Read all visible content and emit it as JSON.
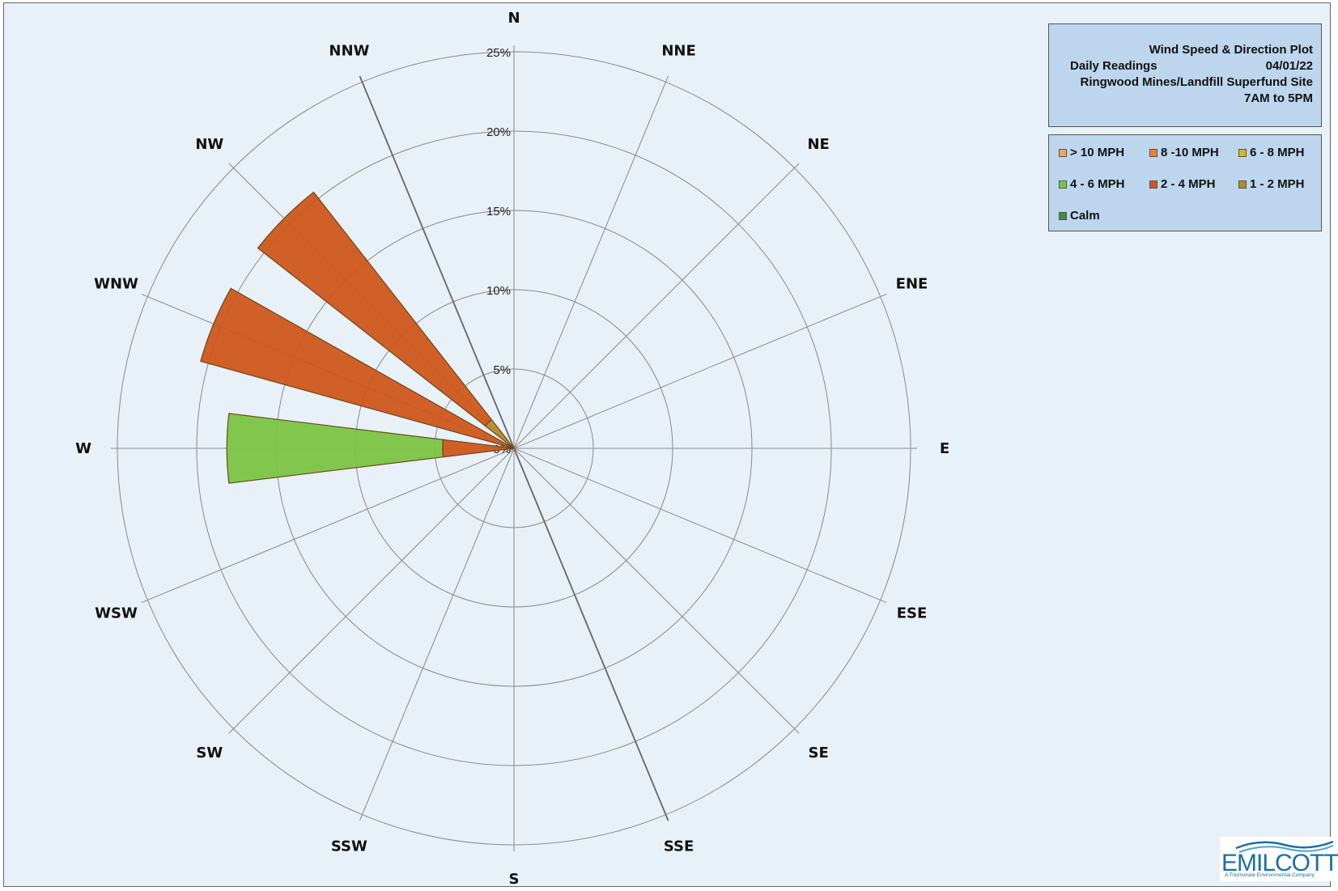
{
  "title_box": {
    "title": "Wind Speed & Direction Plot",
    "subtitle_left": "Daily Readings",
    "date": "04/01/22",
    "site": "Ringwood Mines/Landfill Superfund Site",
    "time_range": "7AM to 5PM"
  },
  "legend": [
    {
      "label": "> 10 MPH",
      "color": "#f5a25c"
    },
    {
      "label": "8 -10 MPH",
      "color": "#f07f2a"
    },
    {
      "label": "6 - 8 MPH",
      "color": "#d8b81e"
    },
    {
      "label": "4 - 6 MPH",
      "color": "#7cc443"
    },
    {
      "label": "2 - 4 MPH",
      "color": "#d0561c"
    },
    {
      "label": "1 - 2 MPH",
      "color": "#b8892a"
    },
    {
      "label": "Calm",
      "color": "#3f8f3a"
    }
  ],
  "logo": {
    "name": "EMILCOTT",
    "tagline": "A Triumvirate Environmental Company"
  },
  "chart_data": {
    "type": "wind_rose",
    "directions": [
      "N",
      "NNE",
      "NE",
      "ENE",
      "E",
      "ESE",
      "SE",
      "SSE",
      "S",
      "SSW",
      "SW",
      "WSW",
      "W",
      "WNW",
      "NW",
      "NNW"
    ],
    "ring_labels": [
      "0%",
      "5%",
      "10%",
      "15%",
      "20%",
      "25%"
    ],
    "rlim": [
      0,
      25
    ],
    "grid": true,
    "legend_position": "top-right",
    "series": [
      {
        "name": "> 10 MPH",
        "values": [
          0,
          0,
          0,
          0,
          0,
          0,
          0,
          0,
          0,
          0,
          0,
          0,
          0,
          0,
          0,
          0
        ]
      },
      {
        "name": "8 -10 MPH",
        "values": [
          0,
          0,
          0,
          0,
          0,
          0,
          0,
          0,
          0,
          0,
          0,
          0,
          0,
          0,
          0,
          0
        ]
      },
      {
        "name": "6 - 8 MPH",
        "values": [
          0,
          0,
          0,
          0,
          0,
          0,
          0,
          0,
          0,
          0,
          0,
          0,
          0,
          0,
          0,
          0
        ]
      },
      {
        "name": "4 - 6 MPH",
        "values": [
          0,
          0,
          0,
          0,
          0,
          0,
          0,
          0,
          0,
          0,
          0,
          0,
          13.6,
          0,
          0,
          0
        ]
      },
      {
        "name": "2 - 4 MPH",
        "values": [
          0,
          0,
          0,
          0,
          0,
          0,
          0,
          0,
          0,
          0,
          0,
          0,
          4.5,
          20.5,
          18.2,
          0
        ]
      },
      {
        "name": "1 - 2 MPH",
        "values": [
          0,
          0,
          0,
          0,
          0,
          0,
          0,
          0,
          0,
          0,
          0,
          0,
          0,
          0,
          2.3,
          0
        ]
      },
      {
        "name": "Calm",
        "values": [
          0,
          0,
          0,
          0,
          0,
          0,
          0,
          0,
          0,
          0,
          0,
          0,
          0,
          0,
          0,
          0
        ]
      }
    ]
  }
}
